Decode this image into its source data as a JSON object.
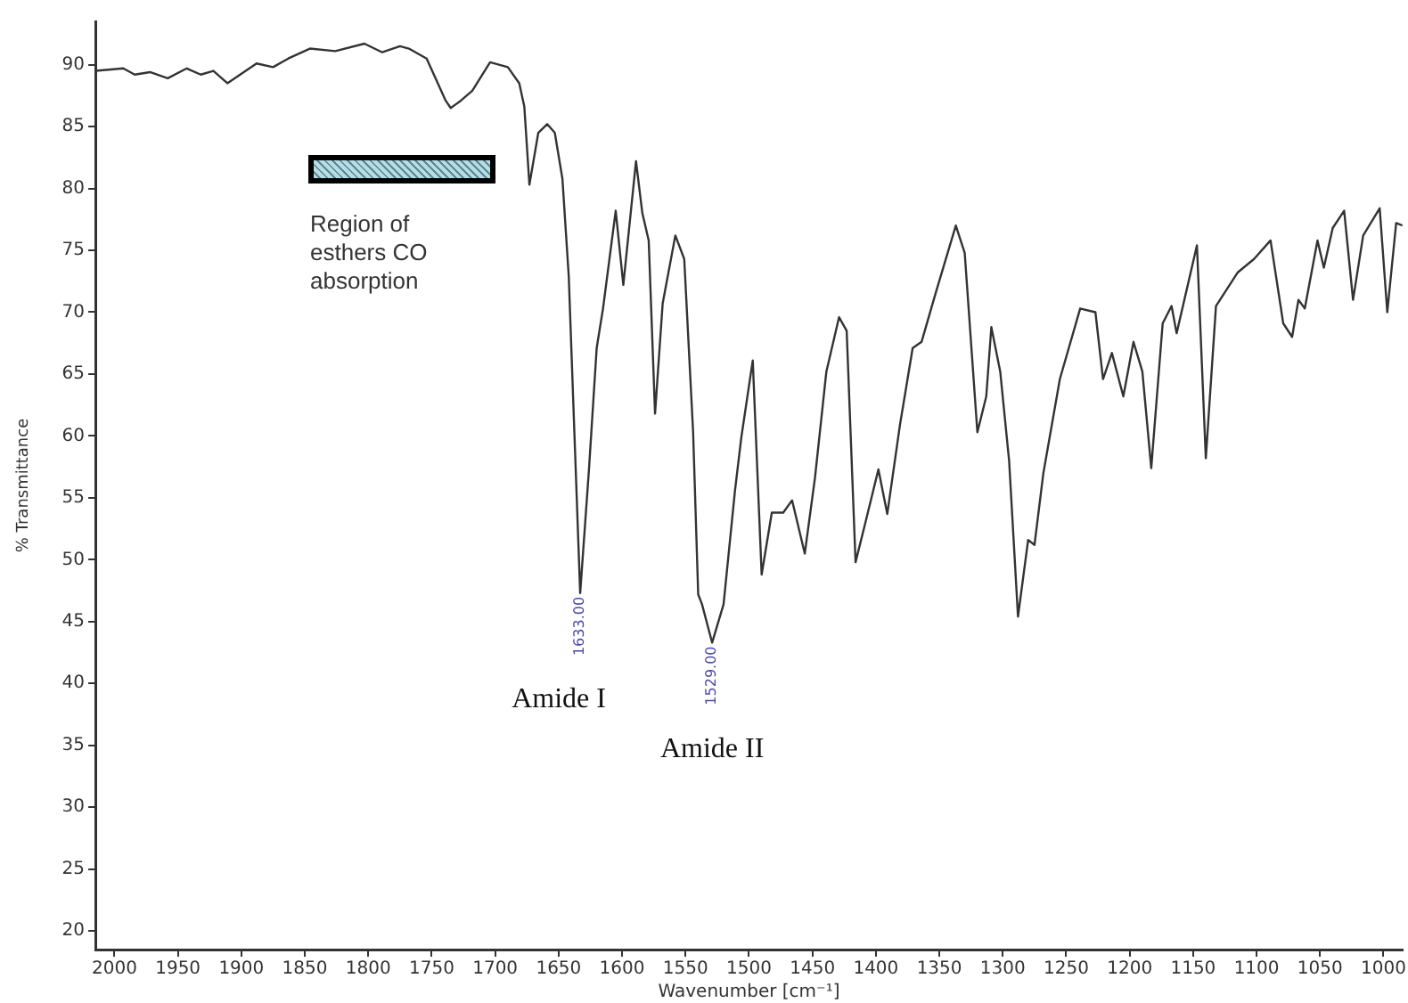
{
  "chart_data": {
    "type": "line",
    "xlabel": "Wavenumber [cm⁻¹]",
    "ylabel": "% Transmittance",
    "xlim": [
      2015,
      985
    ],
    "ylim": [
      18.5,
      93.5
    ],
    "xticks": [
      2000,
      1950,
      1900,
      1850,
      1800,
      1750,
      1700,
      1650,
      1600,
      1550,
      1500,
      1450,
      1400,
      1350,
      1300,
      1250,
      1200,
      1150,
      1100,
      1050,
      1000
    ],
    "yticks": [
      20,
      25,
      30,
      35,
      40,
      45,
      50,
      55,
      60,
      65,
      70,
      75,
      80,
      85,
      90
    ],
    "grid": false,
    "legend": false,
    "marker": "none",
    "line_style": "solid",
    "series": [
      {
        "color": "#333333",
        "x": [
          2015,
          1993,
          1984,
          1972,
          1958,
          1943,
          1932,
          1922,
          1911,
          1888,
          1875,
          1863,
          1846,
          1826,
          1803,
          1789,
          1775,
          1768,
          1754,
          1739,
          1735,
          1727,
          1718,
          1704,
          1690,
          1681,
          1677,
          1673,
          1666,
          1659,
          1653,
          1647,
          1642,
          1633,
          1626,
          1620,
          1615,
          1605,
          1599,
          1589,
          1584,
          1579,
          1574,
          1568,
          1558,
          1551,
          1544,
          1540,
          1537,
          1529,
          1520,
          1511,
          1506,
          1497,
          1490,
          1482,
          1473,
          1466,
          1456,
          1448,
          1439,
          1429,
          1423,
          1416,
          1408,
          1398,
          1391,
          1381,
          1371,
          1364,
          1353,
          1337,
          1330,
          1320,
          1313,
          1309,
          1302,
          1295,
          1288,
          1280,
          1275,
          1268,
          1255,
          1239,
          1227,
          1221,
          1214,
          1205,
          1197,
          1190,
          1183,
          1174,
          1167,
          1163,
          1147,
          1140,
          1132,
          1115,
          1102,
          1089,
          1079,
          1072,
          1067,
          1062,
          1052,
          1047,
          1040,
          1031,
          1024,
          1016,
          1003,
          997,
          990,
          985
        ],
        "values": [
          89.5,
          89.7,
          89.2,
          89.4,
          88.9,
          89.7,
          89.2,
          89.5,
          88.5,
          90.1,
          89.8,
          90.5,
          91.3,
          91.1,
          91.7,
          91.0,
          91.5,
          91.3,
          90.5,
          87.1,
          86.5,
          87.1,
          87.9,
          90.2,
          89.8,
          88.5,
          86.6,
          80.3,
          84.5,
          85.2,
          84.5,
          80.8,
          72.9,
          47.3,
          57.4,
          67.1,
          70.3,
          78.2,
          72.2,
          82.2,
          78.0,
          75.8,
          61.8,
          70.7,
          76.2,
          74.3,
          60.3,
          47.2,
          46.4,
          43.3,
          46.4,
          55.6,
          59.9,
          66.1,
          48.8,
          53.8,
          53.8,
          54.8,
          50.5,
          56.6,
          65.2,
          69.6,
          68.5,
          49.8,
          53.1,
          57.3,
          53.7,
          60.9,
          67.1,
          67.6,
          71.5,
          77.0,
          74.8,
          60.3,
          63.2,
          68.8,
          65.2,
          58.0,
          45.4,
          51.6,
          51.2,
          57.0,
          64.6,
          70.3,
          70.0,
          64.6,
          66.7,
          63.2,
          67.6,
          65.2,
          57.4,
          69.1,
          70.5,
          68.3,
          75.4,
          58.2,
          70.5,
          73.2,
          74.3,
          75.8,
          69.1,
          68.0,
          71.0,
          70.3,
          75.8,
          73.6,
          76.8,
          78.2,
          71.0,
          76.2,
          78.4,
          70.0,
          77.2,
          77.0
        ]
      }
    ],
    "annotations": [
      {
        "text": "1633.00",
        "x": 1633,
        "y": 47.3
      },
      {
        "text": "1529.00",
        "x": 1529,
        "y": 43.3
      },
      "Amide I",
      "Amide II",
      "Region of esthers CO absorption"
    ]
  }
}
